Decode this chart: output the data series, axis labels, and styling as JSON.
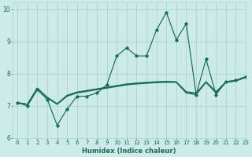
{
  "xlabel": "Humidex (Indice chaleur)",
  "ylabel": "",
  "xlim": [
    -0.5,
    23
  ],
  "ylim": [
    6,
    10.2
  ],
  "yticks": [
    6,
    7,
    8,
    9,
    10
  ],
  "xticks": [
    0,
    1,
    2,
    3,
    4,
    5,
    6,
    7,
    8,
    9,
    10,
    11,
    12,
    13,
    14,
    15,
    16,
    17,
    18,
    19,
    20,
    21,
    22,
    23
  ],
  "bg_color": "#cceae8",
  "grid_color": "#aad4d0",
  "line_color": "#1a6b5a",
  "line_volatile": [
    7.1,
    7.0,
    7.5,
    7.2,
    6.4,
    6.9,
    7.3,
    7.3,
    7.4,
    7.65,
    8.55,
    8.8,
    8.55,
    8.55,
    9.35,
    9.9,
    9.05,
    9.55,
    7.35,
    8.45,
    7.35,
    7.75,
    7.8,
    7.9
  ],
  "line_trend1": [
    7.1,
    7.05,
    7.55,
    7.25,
    7.05,
    7.3,
    7.4,
    7.45,
    7.5,
    7.55,
    7.6,
    7.65,
    7.68,
    7.7,
    7.72,
    7.73,
    7.73,
    7.4,
    7.35,
    7.73,
    7.4,
    7.73,
    7.77,
    7.88
  ],
  "line_trend2": [
    7.1,
    7.05,
    7.55,
    7.25,
    7.05,
    7.32,
    7.42,
    7.47,
    7.52,
    7.57,
    7.62,
    7.67,
    7.7,
    7.72,
    7.74,
    7.75,
    7.74,
    7.42,
    7.38,
    7.74,
    7.42,
    7.74,
    7.78,
    7.9
  ],
  "line_trend3": [
    7.1,
    7.05,
    7.55,
    7.27,
    7.07,
    7.33,
    7.43,
    7.48,
    7.53,
    7.58,
    7.63,
    7.68,
    7.71,
    7.73,
    7.75,
    7.76,
    7.75,
    7.44,
    7.4,
    7.75,
    7.44,
    7.75,
    7.79,
    7.91
  ]
}
